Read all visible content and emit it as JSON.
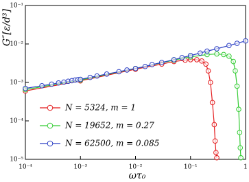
{
  "chart_data": {
    "type": "line",
    "xscale": "log",
    "yscale": "log",
    "xlabel": "ωτ₀",
    "ylabel": "G″[ε/d³]",
    "legend": "lower left",
    "xlim": [
      0.0001,
      1
    ],
    "ylim": [
      1e-05,
      0.1
    ],
    "xticks": [
      {
        "value": 0.0001,
        "label": "10⁻⁴"
      },
      {
        "value": 0.001,
        "label": "10⁻³"
      },
      {
        "value": 0.01,
        "label": "10⁻²"
      },
      {
        "value": 0.1,
        "label": "10⁻¹"
      },
      1
    ],
    "yticks": [
      {
        "value": 1e-05,
        "label": "10⁻⁵"
      },
      {
        "value": 0.0001,
        "label": "10⁻⁴"
      },
      {
        "value": 0.001,
        "label": "10⁻³"
      },
      {
        "value": 0.01,
        "label": "10⁻²"
      },
      {
        "value": 0.1,
        "label": "10⁻¹"
      }
    ],
    "series": [
      {
        "name": "N = 5324, m = 1",
        "color": "#e41a1c",
        "x": [
          0.0001,
          0.001,
          0.01,
          0.03,
          0.05,
          0.08,
          0.1,
          0.13,
          0.16,
          0.19,
          0.21,
          0.23,
          0.25,
          0.27,
          0.28,
          0.29,
          0.3
        ],
        "values": [
          0.0006,
          0.0011,
          0.0022,
          0.003,
          0.0035,
          0.0038,
          0.0039,
          0.0039,
          0.0036,
          0.003,
          0.002,
          0.001,
          0.0003,
          8e-05,
          3e-05,
          1.5e-05,
          1.1e-05
        ]
      },
      {
        "name": "N = 19652, m = 0.27",
        "color": "#33cc33",
        "x": [
          0.0001,
          0.001,
          0.01,
          0.05,
          0.1,
          0.2,
          0.3,
          0.4,
          0.5,
          0.6,
          0.65,
          0.7,
          0.75,
          0.78,
          0.8,
          0.82
        ],
        "values": [
          0.00065,
          0.00115,
          0.0023,
          0.0038,
          0.0046,
          0.0053,
          0.0055,
          0.0053,
          0.0048,
          0.0035,
          0.002,
          0.0008,
          0.0002,
          5e-05,
          2e-05,
          1.1e-05
        ]
      },
      {
        "name": "N = 62500, m = 0.085",
        "color": "#2b3fc4",
        "x": [
          0.0001,
          0.0002,
          0.0003,
          0.0004,
          0.0005,
          0.0006,
          0.0007,
          0.0008,
          0.0009,
          0.001,
          0.0015,
          0.002,
          0.003,
          0.005,
          0.007,
          0.01,
          0.015,
          0.02,
          0.03,
          0.05,
          0.07,
          0.1,
          0.15,
          0.2,
          0.3,
          0.5,
          0.7,
          1
        ],
        "values": [
          0.0007,
          0.00082,
          0.0009,
          0.00097,
          0.00102,
          0.00107,
          0.00111,
          0.00115,
          0.00118,
          0.0012,
          0.00135,
          0.00147,
          0.00165,
          0.0019,
          0.0021,
          0.0023,
          0.0026,
          0.0029,
          0.0033,
          0.0039,
          0.0044,
          0.005,
          0.0058,
          0.0065,
          0.0075,
          0.0091,
          0.0104,
          0.012
        ]
      }
    ]
  }
}
